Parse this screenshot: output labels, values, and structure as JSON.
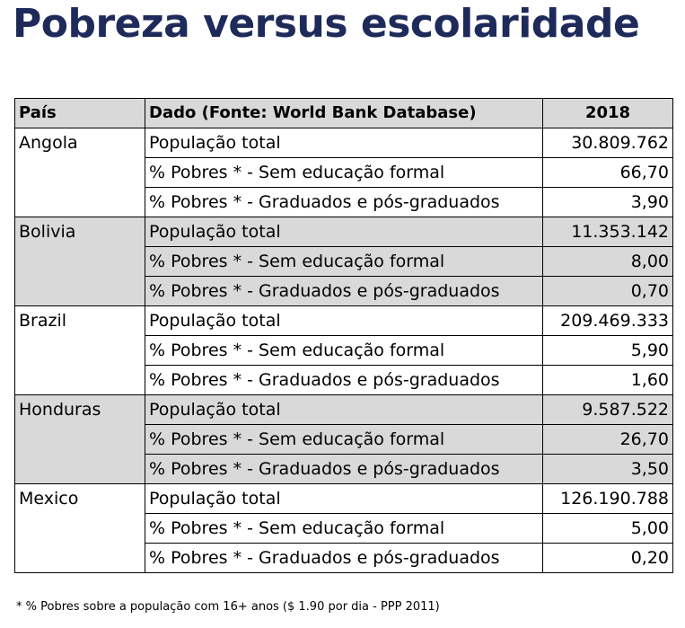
{
  "title": "Pobreza versus escolaridade",
  "table": {
    "headers": [
      "País",
      "Dado (Fonte: World Bank Database)",
      "2018"
    ],
    "groups": [
      {
        "country": "Angola",
        "rows": [
          {
            "label": "População total",
            "value": "30.809.762"
          },
          {
            "label": "% Pobres * - Sem educação formal",
            "value": "66,70"
          },
          {
            "label": "% Pobres * - Graduados e pós-graduados",
            "value": "3,90"
          }
        ]
      },
      {
        "country": "Bolivia",
        "rows": [
          {
            "label": "População total",
            "value": "11.353.142"
          },
          {
            "label": "% Pobres * - Sem educação formal",
            "value": "8,00"
          },
          {
            "label": "% Pobres * - Graduados e pós-graduados",
            "value": "0,70"
          }
        ]
      },
      {
        "country": "Brazil",
        "rows": [
          {
            "label": "População total",
            "value": "209.469.333"
          },
          {
            "label": "% Pobres * - Sem educação formal",
            "value": "5,90"
          },
          {
            "label": "% Pobres * - Graduados e pós-graduados",
            "value": "1,60"
          }
        ]
      },
      {
        "country": "Honduras",
        "rows": [
          {
            "label": "População total",
            "value": "9.587.522"
          },
          {
            "label": "% Pobres * - Sem educação formal",
            "value": "26,70"
          },
          {
            "label": "% Pobres * - Graduados e pós-graduados",
            "value": "3,50"
          }
        ]
      },
      {
        "country": "Mexico",
        "rows": [
          {
            "label": "População total",
            "value": "126.190.788"
          },
          {
            "label": "% Pobres * - Sem educação formal",
            "value": "5,00"
          },
          {
            "label": "% Pobres * - Graduados e pós-graduados",
            "value": "0,20"
          }
        ]
      }
    ]
  },
  "footnote": "* % Pobres sobre a população com 16+ anos ($ 1.90 por dia - PPP 2011)",
  "colors": {
    "title": "#1e2a5a",
    "shade": "#d9d9d9"
  }
}
